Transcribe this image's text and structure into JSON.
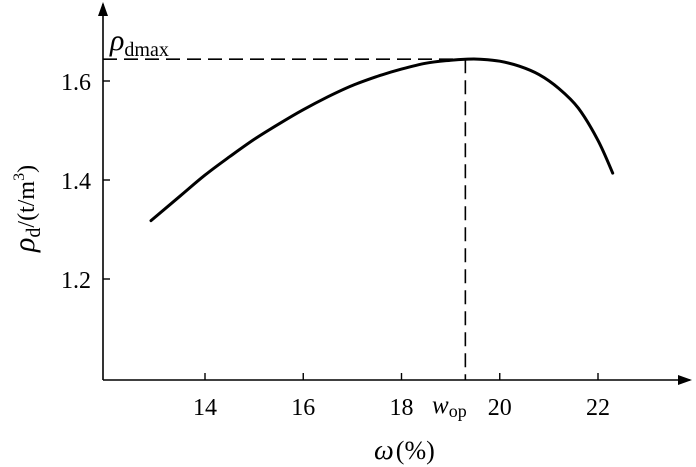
{
  "chart_data": {
    "type": "line",
    "xlabel": {
      "symbol": "ω",
      "unit": "(%)"
    },
    "ylabel": {
      "symbol": "ρ",
      "sub": "d",
      "unit_pre": "/(t/m",
      "sup": "3",
      "unit_post": ")"
    },
    "xlim": [
      12,
      23.4
    ],
    "ylim": [
      1.0,
      1.68
    ],
    "x_ticks": [
      14,
      16,
      18,
      20,
      22
    ],
    "y_ticks": [
      1.2,
      1.4,
      1.6
    ],
    "x_tick_labels": [
      "14",
      "16",
      "18",
      "20",
      "22"
    ],
    "y_tick_labels": [
      "1.2",
      "1.4",
      "1.6"
    ],
    "grid": false,
    "series": [
      {
        "x": [
          12.9,
          13.5,
          14.0,
          14.5,
          15.0,
          15.5,
          16.0,
          16.5,
          17.0,
          17.5,
          18.0,
          18.5,
          19.0,
          19.3,
          19.6,
          20.0,
          20.4,
          20.8,
          21.2,
          21.6,
          22.0,
          22.3
        ],
        "y": [
          1.318,
          1.368,
          1.41,
          1.447,
          1.482,
          1.513,
          1.542,
          1.568,
          1.591,
          1.609,
          1.624,
          1.636,
          1.642,
          1.644,
          1.644,
          1.64,
          1.63,
          1.613,
          1.585,
          1.545,
          1.48,
          1.414
        ]
      }
    ],
    "annotations": {
      "peak_label": {
        "symbol": "ρ",
        "sub": "dmax"
      },
      "opt_label": {
        "symbol": "w",
        "sub": "op"
      },
      "peak_point": {
        "x": 19.3,
        "y": 1.644
      }
    }
  }
}
